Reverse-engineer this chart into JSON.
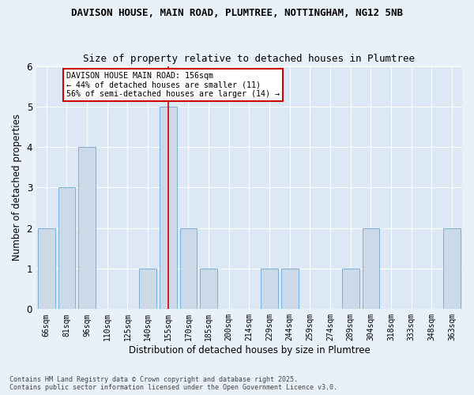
{
  "title1": "DAVISON HOUSE, MAIN ROAD, PLUMTREE, NOTTINGHAM, NG12 5NB",
  "title2": "Size of property relative to detached houses in Plumtree",
  "xlabel": "Distribution of detached houses by size in Plumtree",
  "ylabel": "Number of detached properties",
  "categories": [
    "66sqm",
    "81sqm",
    "96sqm",
    "110sqm",
    "125sqm",
    "140sqm",
    "155sqm",
    "170sqm",
    "185sqm",
    "200sqm",
    "214sqm",
    "229sqm",
    "244sqm",
    "259sqm",
    "274sqm",
    "289sqm",
    "304sqm",
    "318sqm",
    "333sqm",
    "348sqm",
    "363sqm"
  ],
  "values": [
    2,
    3,
    4,
    0,
    0,
    1,
    5,
    2,
    1,
    0,
    0,
    1,
    1,
    0,
    0,
    1,
    2,
    0,
    0,
    0,
    2
  ],
  "bar_color": "#ccd9e8",
  "bar_edge_color": "#7bafd4",
  "annotation_line": "DAVISON HOUSE MAIN ROAD: 156sqm",
  "annotation_line2": "← 44% of detached houses are smaller (11)",
  "annotation_line3": "56% of semi-detached houses are larger (14) →",
  "vline_color": "#cc0000",
  "annotation_box_color": "#ffffff",
  "annotation_box_edge": "#cc0000",
  "footer1": "Contains HM Land Registry data © Crown copyright and database right 2025.",
  "footer2": "Contains public sector information licensed under the Open Government Licence v3.0.",
  "ylim": [
    0,
    6
  ],
  "yticks": [
    0,
    1,
    2,
    3,
    4,
    5,
    6
  ],
  "bg_color": "#e8f0f8",
  "plot_bg": "#dce8f5",
  "vline_index": 6.5
}
